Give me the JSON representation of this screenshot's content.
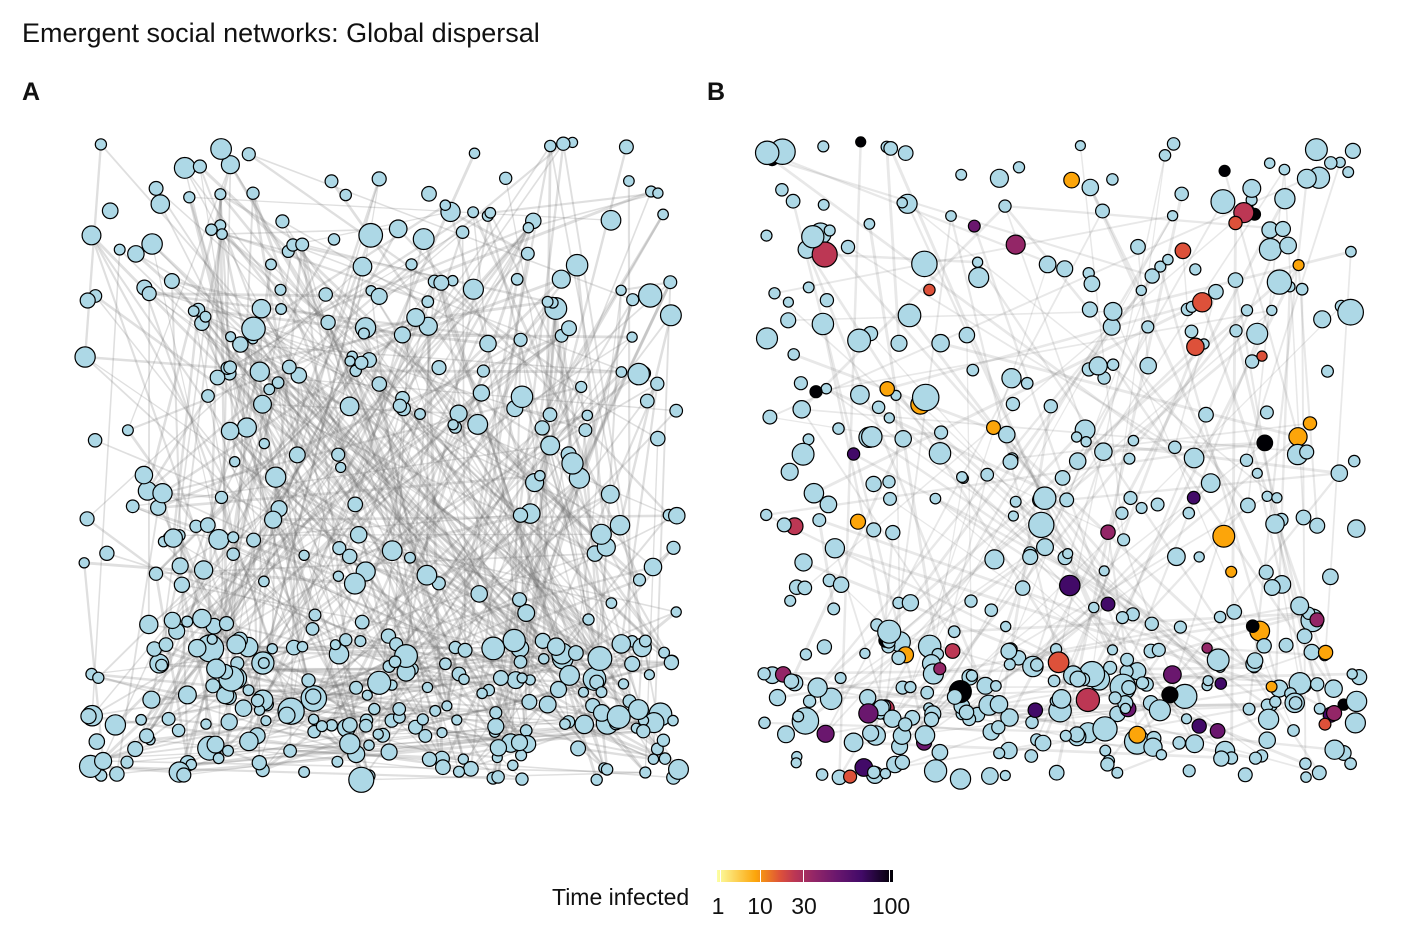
{
  "title": "Emergent social networks: Global dispersal",
  "panels": {
    "a": {
      "label": "A"
    },
    "b": {
      "label": "B"
    }
  },
  "legend": {
    "title": "Time infected",
    "ticks": [
      "1",
      "10",
      "30",
      "100"
    ],
    "palette": [
      "#fcffa4",
      "#fca50a",
      "#dd513a",
      "#bc3754",
      "#932667",
      "#6a176e",
      "#420a68",
      "#000004"
    ]
  },
  "colors": {
    "node_fill": "#add8e6",
    "node_stroke": "#000000",
    "edge": "#6e6e6e"
  }
}
